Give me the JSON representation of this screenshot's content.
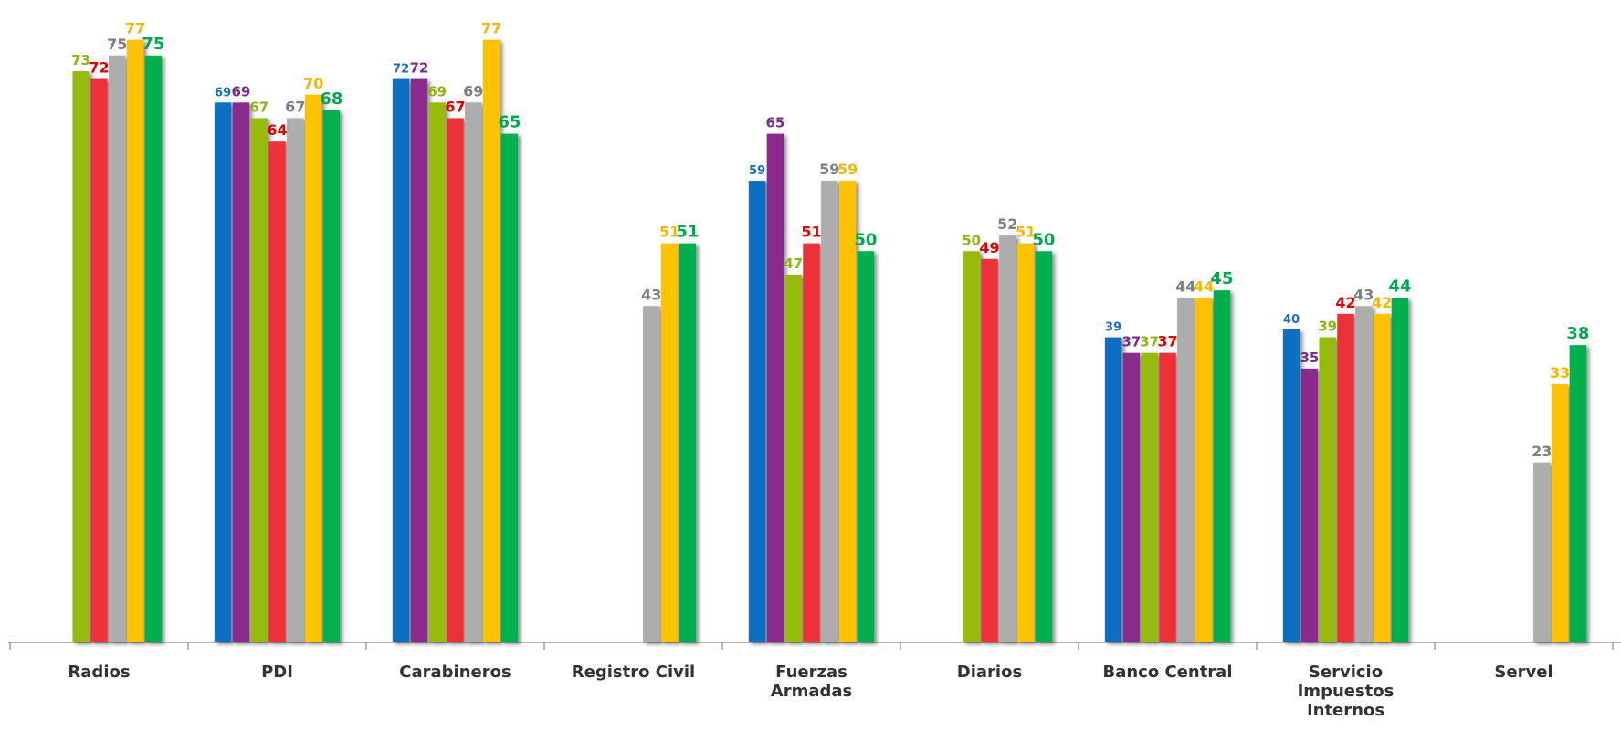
{
  "chart_data": {
    "type": "bar",
    "categories": [
      "Radios",
      "PDI",
      "Carabineros",
      "Registro Civil",
      "Fuerzas Armadas",
      "Diarios",
      "Banco Central",
      "Servicio Impuestos Internos",
      "Servel"
    ],
    "series": [
      {
        "color": "#0e6ec2",
        "label_color": "#1a6fc1",
        "values": [
          null,
          69,
          72,
          null,
          59,
          null,
          39,
          40,
          null
        ]
      },
      {
        "color": "#8a2a8c",
        "label_color": "#7b2a8a",
        "values": [
          null,
          69,
          72,
          null,
          65,
          null,
          37,
          35,
          null
        ]
      },
      {
        "color": "#97bb10",
        "label_color": "#8fb30f",
        "values": [
          73,
          67,
          69,
          null,
          47,
          50,
          37,
          39,
          null
        ]
      },
      {
        "color": "#ec3237",
        "label_color": "#e00000",
        "values": [
          72,
          64,
          67,
          null,
          51,
          49,
          37,
          42,
          null
        ]
      },
      {
        "color": "#adadad",
        "label_color": "#7f7f7f",
        "values": [
          75,
          67,
          69,
          43,
          59,
          52,
          44,
          43,
          23
        ]
      },
      {
        "color": "#fec200",
        "label_color": "#f5b800",
        "values": [
          77,
          70,
          77,
          51,
          59,
          51,
          44,
          42,
          33
        ]
      },
      {
        "color": "#00b050",
        "label_color": "#00a850",
        "values": [
          75,
          68,
          65,
          51,
          50,
          50,
          45,
          44,
          38
        ]
      }
    ],
    "ylim": [
      0,
      80
    ]
  }
}
